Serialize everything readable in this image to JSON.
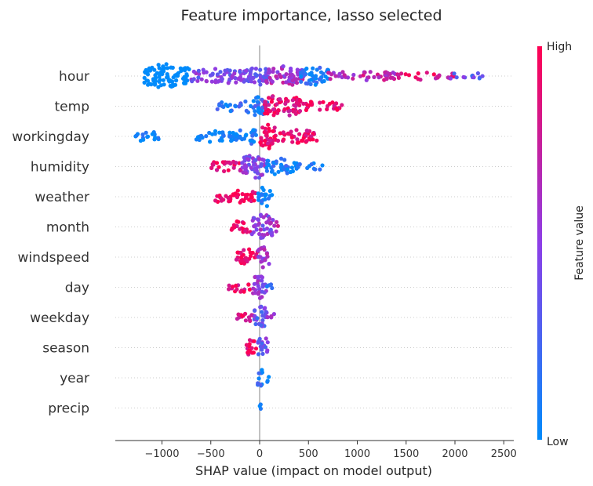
{
  "chart_data": {
    "type": "scatter",
    "subtype": "shap-beeswarm",
    "title": "Feature importance, lasso selected",
    "xlabel": "SHAP value (impact on model output)",
    "xlim": [
      -1450,
      2580
    ],
    "xticks": [
      -1000,
      -500,
      0,
      500,
      1000,
      1500,
      2000,
      2500
    ],
    "xtick_labels": [
      "−1000",
      "−500",
      "0",
      "500",
      "1000",
      "1500",
      "2000",
      "2500"
    ],
    "colorbar": {
      "label": "Feature value",
      "high": "High",
      "low": "Low",
      "low_color": "#008bfb",
      "high_color": "#ff0052"
    },
    "features": [
      {
        "name": "hour",
        "range": [
          -1230,
          2380
        ],
        "clusters": [
          [
            -1180,
            -720,
            -0.85,
            0.95
          ],
          [
            -700,
            -80,
            0.45,
            0.55
          ],
          [
            -120,
            100,
            0.4,
            0.7
          ],
          [
            60,
            450,
            0.6,
            0.75
          ],
          [
            420,
            720,
            0.1,
            0.7
          ],
          [
            700,
            1400,
            0.7,
            0.3
          ],
          [
            1400,
            2000,
            0.85,
            0.2
          ],
          [
            1950,
            2380,
            0.35,
            0.15
          ]
        ]
      },
      {
        "name": "temp",
        "range": [
          -450,
          850
        ],
        "clusters": [
          [
            -450,
            -150,
            0.15,
            0.3
          ],
          [
            -150,
            80,
            0.15,
            0.7
          ],
          [
            50,
            420,
            0.9,
            0.9
          ],
          [
            400,
            850,
            0.95,
            0.3
          ]
        ]
      },
      {
        "name": "workingday",
        "range": [
          -1270,
          590
        ],
        "clusters": [
          [
            -1270,
            -1030,
            0.0,
            0.35
          ],
          [
            -700,
            -220,
            0.0,
            0.4
          ],
          [
            -220,
            -30,
            0.05,
            0.6
          ],
          [
            0,
            180,
            0.95,
            1.0
          ],
          [
            180,
            590,
            0.95,
            0.5
          ]
        ]
      },
      {
        "name": "humidity",
        "range": [
          -520,
          660
        ],
        "clusters": [
          [
            -520,
            -180,
            0.9,
            0.35
          ],
          [
            -180,
            60,
            0.45,
            1.0
          ],
          [
            60,
            380,
            0.08,
            0.6
          ],
          [
            380,
            660,
            0.02,
            0.2
          ]
        ]
      },
      {
        "name": "weather",
        "range": [
          -470,
          130
        ],
        "clusters": [
          [
            -470,
            -40,
            1.0,
            0.45
          ],
          [
            -20,
            130,
            0.05,
            0.8
          ]
        ]
      },
      {
        "name": "month",
        "range": [
          -300,
          200
        ],
        "clusters": [
          [
            -300,
            -80,
            0.95,
            0.45
          ],
          [
            -80,
            140,
            0.5,
            1.0
          ],
          [
            140,
            200,
            0.7,
            0.3
          ]
        ]
      },
      {
        "name": "windspeed",
        "range": [
          -250,
          100
        ],
        "clusters": [
          [
            -250,
            -20,
            0.95,
            0.6
          ],
          [
            -20,
            100,
            0.55,
            0.8
          ]
        ]
      },
      {
        "name": "day",
        "range": [
          -320,
          150
        ],
        "clusters": [
          [
            -320,
            -70,
            0.9,
            0.3
          ],
          [
            -70,
            70,
            0.5,
            1.0
          ],
          [
            70,
            150,
            0.15,
            0.3
          ]
        ]
      },
      {
        "name": "weekday",
        "range": [
          -230,
          150
        ],
        "clusters": [
          [
            -230,
            -60,
            0.9,
            0.4
          ],
          [
            -60,
            80,
            0.35,
            0.9
          ],
          [
            80,
            150,
            0.6,
            0.3
          ]
        ]
      },
      {
        "name": "season",
        "range": [
          -150,
          90
        ],
        "clusters": [
          [
            -150,
            -20,
            0.95,
            0.6
          ],
          [
            -20,
            90,
            0.4,
            0.8
          ]
        ]
      },
      {
        "name": "year",
        "range": [
          -30,
          95
        ],
        "clusters": [
          [
            -30,
            30,
            0.1,
            0.8
          ],
          [
            30,
            95,
            0.05,
            0.25
          ]
        ]
      },
      {
        "name": "precip",
        "range": [
          -5,
          5
        ],
        "clusters": [
          [
            -5,
            5,
            0.05,
            0.4
          ]
        ]
      }
    ],
    "colors": {
      "low": "#008bfb",
      "high": "#ff0052",
      "zero_line": "#999999",
      "grid": "#cccccc"
    }
  }
}
